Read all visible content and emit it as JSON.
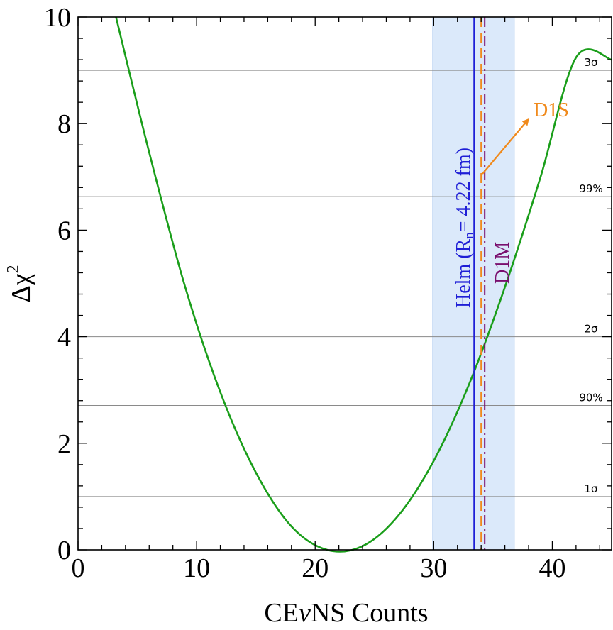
{
  "chart_data": {
    "type": "line",
    "xlabel_parts": [
      "CE",
      "ν",
      "NS Counts"
    ],
    "ylabel_parts": [
      "Δχ",
      "2"
    ],
    "xlim": [
      0,
      45
    ],
    "ylim": [
      0,
      10
    ],
    "x_ticks": [
      0,
      10,
      20,
      30,
      40
    ],
    "y_ticks": [
      0,
      2,
      4,
      6,
      8,
      10
    ],
    "grid": false,
    "series": [
      {
        "color": "#1a9e1a",
        "x": [
          3.2,
          6,
          9,
          12,
          15,
          18,
          21,
          24,
          27,
          30,
          33,
          36,
          39,
          42,
          45
        ],
        "y": [
          10.0,
          7.46,
          4.96,
          2.96,
          1.45,
          0.44,
          0.0,
          0.07,
          0.64,
          1.67,
          3.12,
          4.93,
          6.99,
          9.24,
          9.2
        ]
      }
    ],
    "reference_lines": [
      {
        "label": "1σ",
        "y": 1.0
      },
      {
        "label": "90%",
        "y": 2.71
      },
      {
        "label": "2σ",
        "y": 4.0
      },
      {
        "label": "99%",
        "y": 6.63
      },
      {
        "label": "3σ",
        "y": 9.0
      }
    ],
    "band": {
      "x": [
        29.9,
        36.8
      ],
      "color": "#dbe9fa"
    },
    "vertical_lines": [
      {
        "label_parts": [
          "Helm (R",
          "n",
          "= 4.22 fm)"
        ],
        "x": 33.4,
        "color": "#1f1fd6",
        "style": "solid"
      },
      {
        "label": "D1S",
        "x": 34.0,
        "color": "#f08a1c",
        "style": "dashed"
      },
      {
        "label": "D1M",
        "x": 34.3,
        "color": "#7a0f6e",
        "style": "dashdot"
      }
    ]
  }
}
